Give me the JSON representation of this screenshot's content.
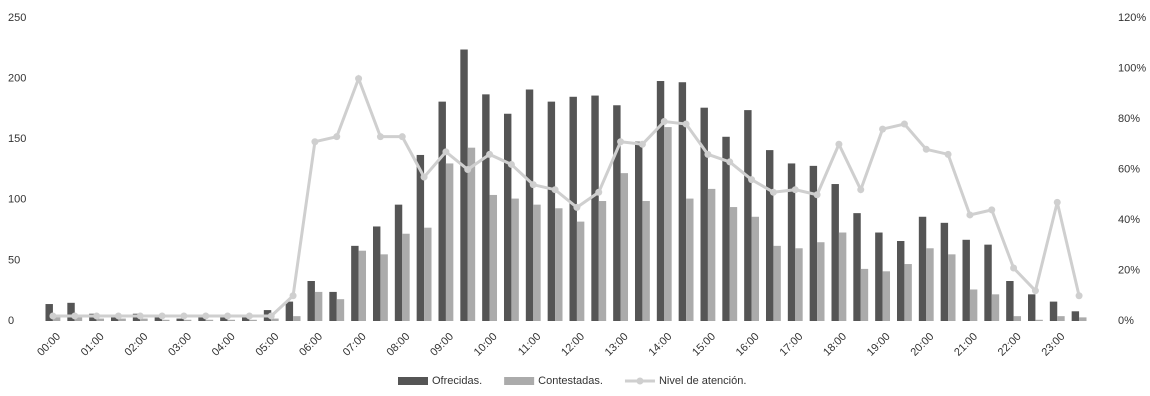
{
  "chart_data": {
    "type": "bar_line",
    "categories": [
      "00:00",
      null,
      "01:00",
      null,
      "02:00",
      null,
      "03:00",
      null,
      "04:00",
      null,
      "05:00",
      null,
      "06:00",
      null,
      "07:00",
      null,
      "08:00",
      null,
      "09:00",
      null,
      "10:00",
      null,
      "11:00",
      null,
      "12:00",
      null,
      "13:00",
      null,
      "14:00",
      null,
      "15:00",
      null,
      "16:00",
      null,
      "17:00",
      null,
      "18:00",
      null,
      "19:00",
      null,
      "20:00",
      null,
      "21:00",
      null,
      "22:00",
      null,
      "23:00",
      null
    ],
    "series": [
      {
        "name": "Ofrecidas.",
        "type": "bar",
        "color": "#555555",
        "values": [
          14,
          15,
          6,
          4,
          6,
          3,
          2,
          3,
          3,
          5,
          9,
          16,
          33,
          24,
          62,
          78,
          96,
          137,
          181,
          224,
          187,
          171,
          191,
          181,
          185,
          186,
          178,
          148,
          198,
          197,
          176,
          152,
          174,
          141,
          130,
          128,
          113,
          89,
          73,
          66,
          86,
          81,
          67,
          63,
          33,
          22,
          16,
          8
        ]
      },
      {
        "name": "Contestadas.",
        "type": "bar",
        "color": "#ababab",
        "values": [
          4,
          3,
          2,
          2,
          2,
          1,
          1,
          1,
          1,
          1,
          2,
          4,
          24,
          18,
          58,
          55,
          72,
          77,
          130,
          143,
          104,
          101,
          96,
          93,
          82,
          99,
          122,
          99,
          160,
          101,
          109,
          94,
          86,
          62,
          60,
          65,
          73,
          43,
          41,
          47,
          60,
          55,
          26,
          22,
          4,
          1,
          4,
          3
        ]
      },
      {
        "name": "Nivel de atención.",
        "type": "line",
        "axis": "y2",
        "color": "#cfcfcf",
        "values": [
          2,
          2,
          2,
          2,
          2,
          2,
          2,
          2,
          2,
          2,
          2,
          10,
          71,
          73,
          96,
          73,
          73,
          57,
          67,
          60,
          66,
          62,
          54,
          52,
          45,
          51,
          71,
          70,
          79,
          78,
          66,
          63,
          56,
          51,
          52,
          50,
          70,
          52,
          76,
          78,
          68,
          66,
          42,
          44,
          21,
          12,
          47,
          10
        ]
      }
    ],
    "ylim": [
      0,
      250
    ],
    "yticks": [
      0,
      50,
      100,
      150,
      200,
      250
    ],
    "y2lim": [
      0,
      120
    ],
    "y2ticks": [
      {
        "value": 0,
        "label": "0%"
      },
      {
        "value": 20,
        "label": "20%"
      },
      {
        "value": 40,
        "label": "40%"
      },
      {
        "value": 60,
        "label": "60%"
      },
      {
        "value": 80,
        "label": "80%"
      },
      {
        "value": 100,
        "label": "100%"
      },
      {
        "value": 120,
        "label": "120%"
      }
    ],
    "grid": false,
    "legend": "bottom"
  }
}
